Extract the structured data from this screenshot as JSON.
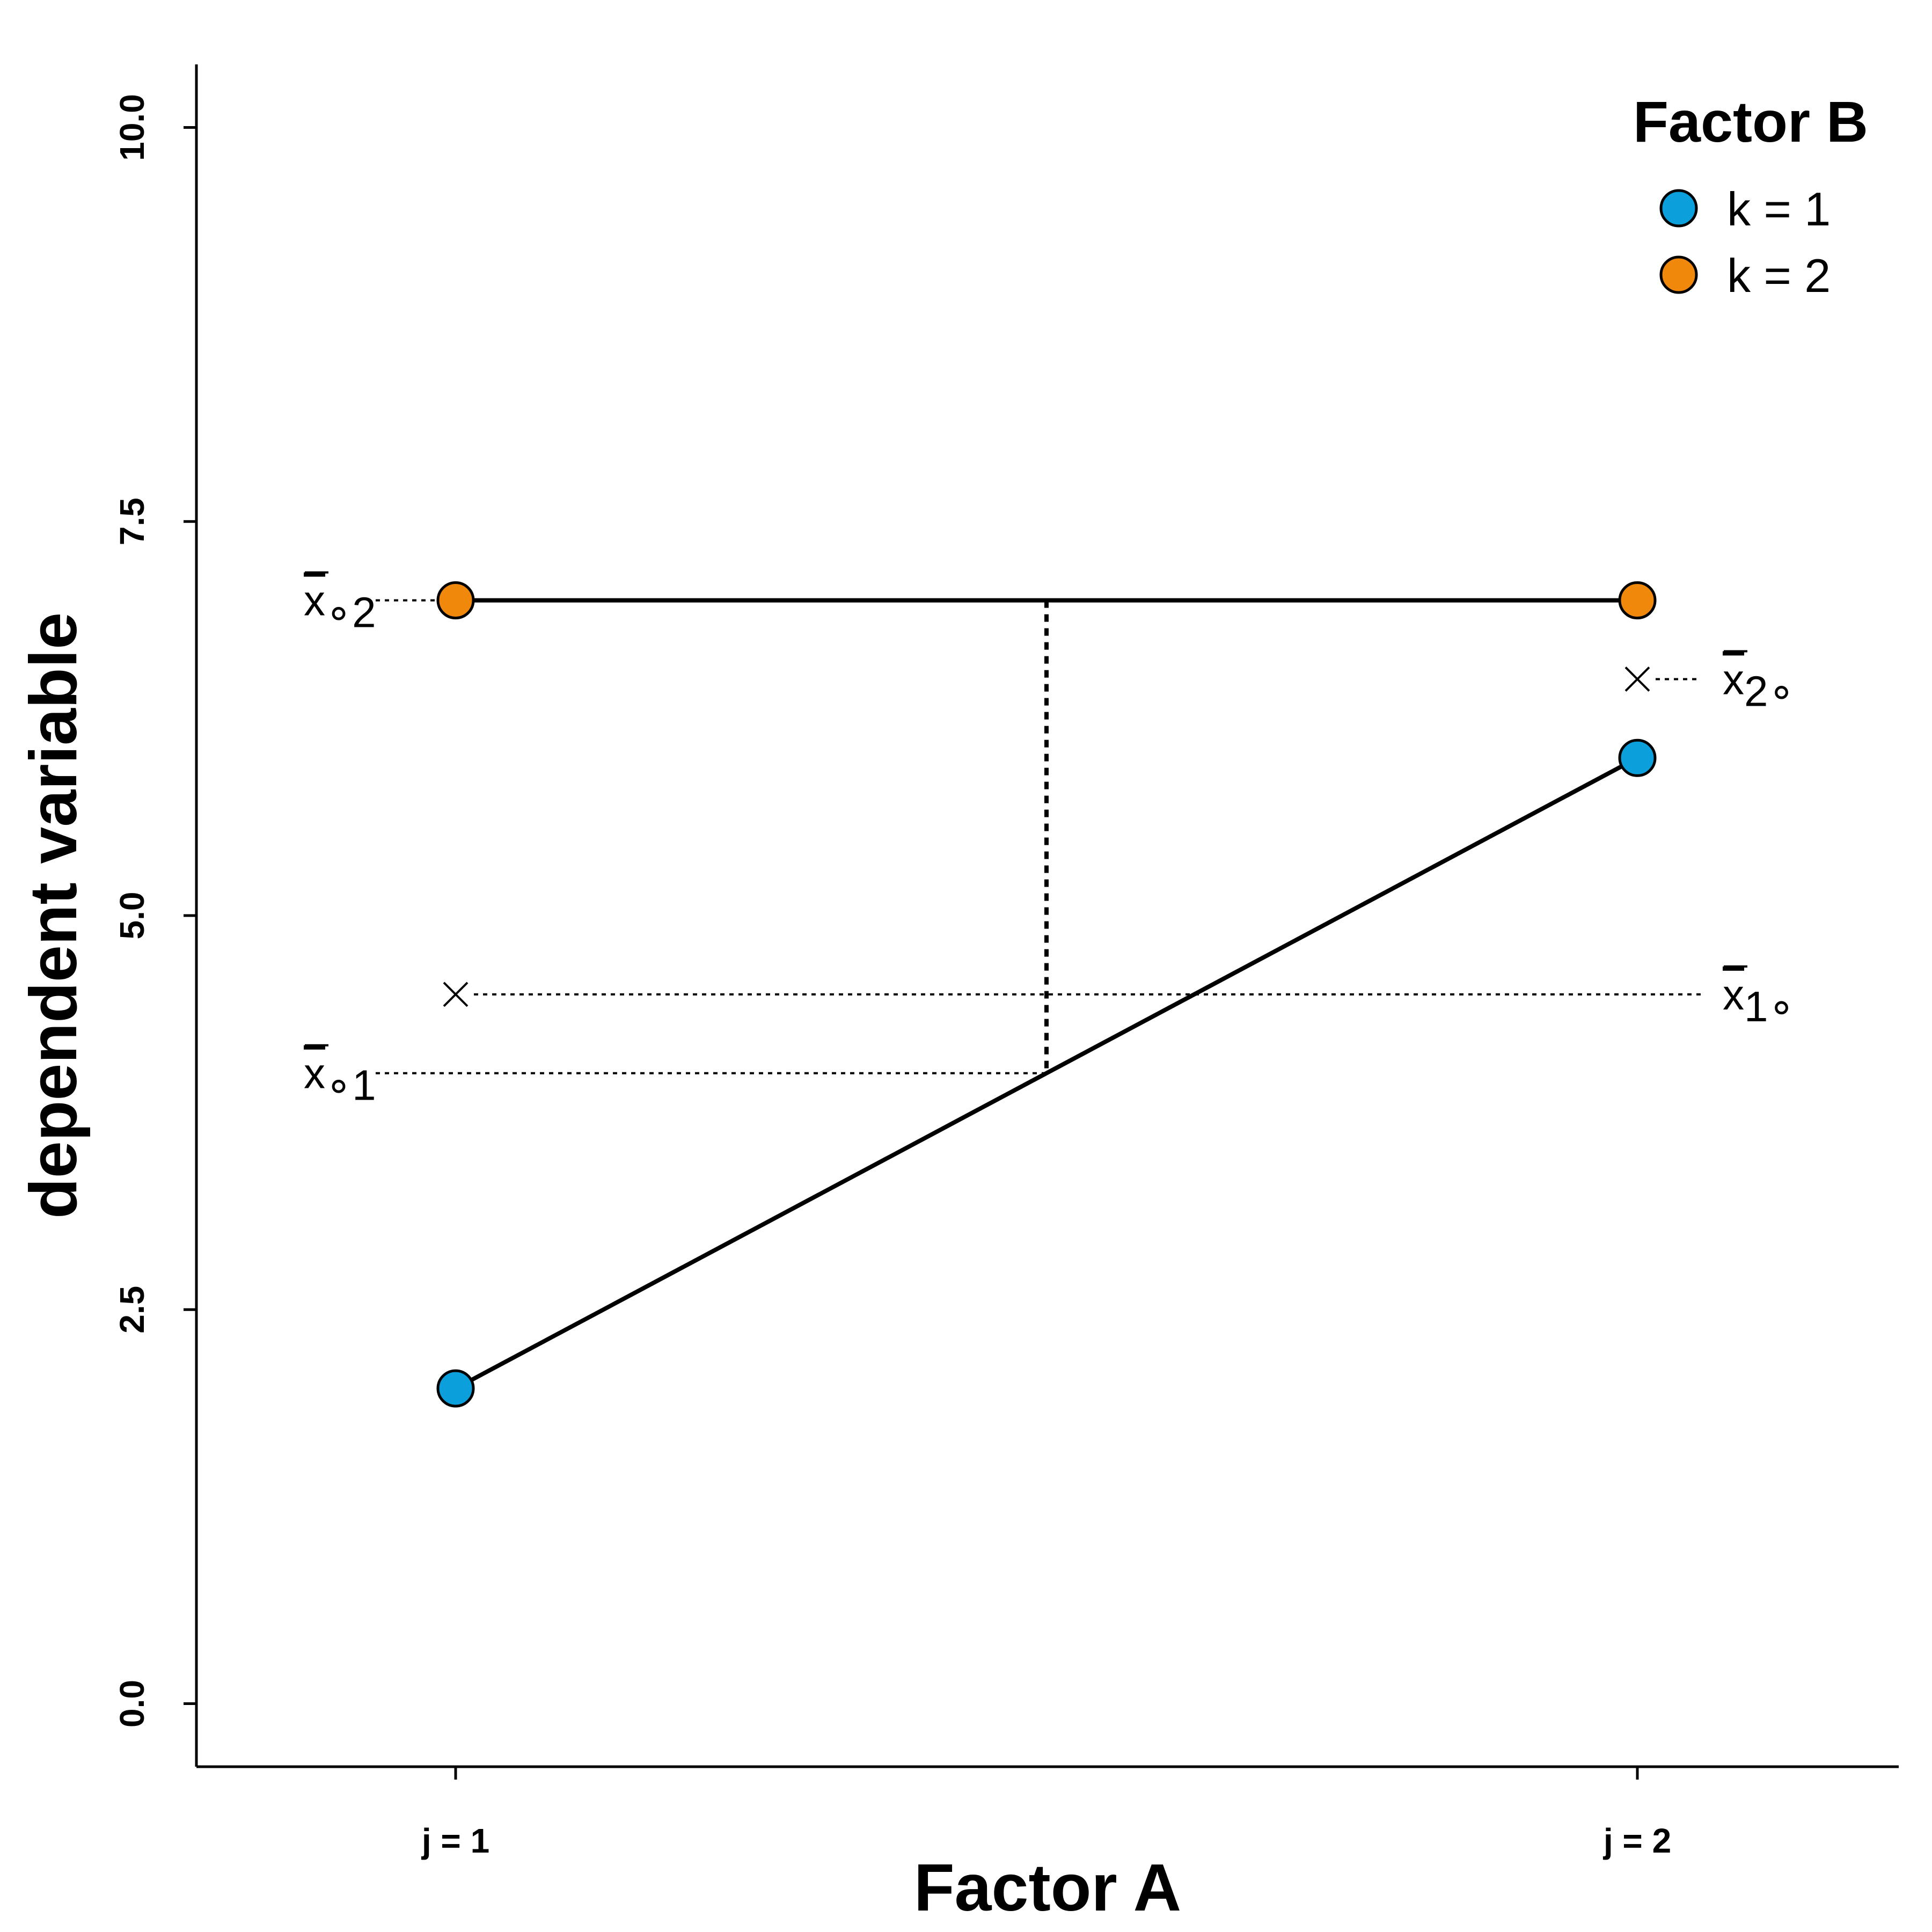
{
  "chart_data": {
    "type": "line",
    "title": "",
    "xlabel": "Factor A",
    "ylabel": "dependent variable",
    "categories": [
      "j = 1",
      "j = 2"
    ],
    "ylim": [
      -0.4,
      10.4
    ],
    "yticks": [
      0.0,
      2.5,
      5.0,
      7.5,
      10.0
    ],
    "ytick_labels": [
      "0.0",
      "2.5",
      "5.0",
      "7.5",
      "10.0"
    ],
    "grid": false,
    "legend": {
      "title": "Factor B",
      "position": "top-right"
    },
    "series": [
      {
        "name": "k = 1",
        "color": "#0b9fdc",
        "values": [
          2,
          6
        ]
      },
      {
        "name": "k = 2",
        "color": "#f0880c",
        "values": [
          7,
          7
        ]
      }
    ],
    "marginal_means": {
      "factor_a": [
        {
          "label_base": "x",
          "label_sub": "1∘",
          "x": "j = 1",
          "value": 4.5
        },
        {
          "label_base": "x",
          "label_sub": "2∘",
          "x": "j = 2",
          "value": 6.5
        }
      ],
      "factor_b": [
        {
          "label_base": "x",
          "label_sub": "∘1",
          "value": 4.0
        },
        {
          "label_base": "x",
          "label_sub": "∘2",
          "value": 7.0
        }
      ]
    },
    "annotations": [
      {
        "type": "dotted-vertical-segment",
        "x_position": "midpoint of Factor A",
        "from": 4.0,
        "to": 7.0
      }
    ]
  }
}
